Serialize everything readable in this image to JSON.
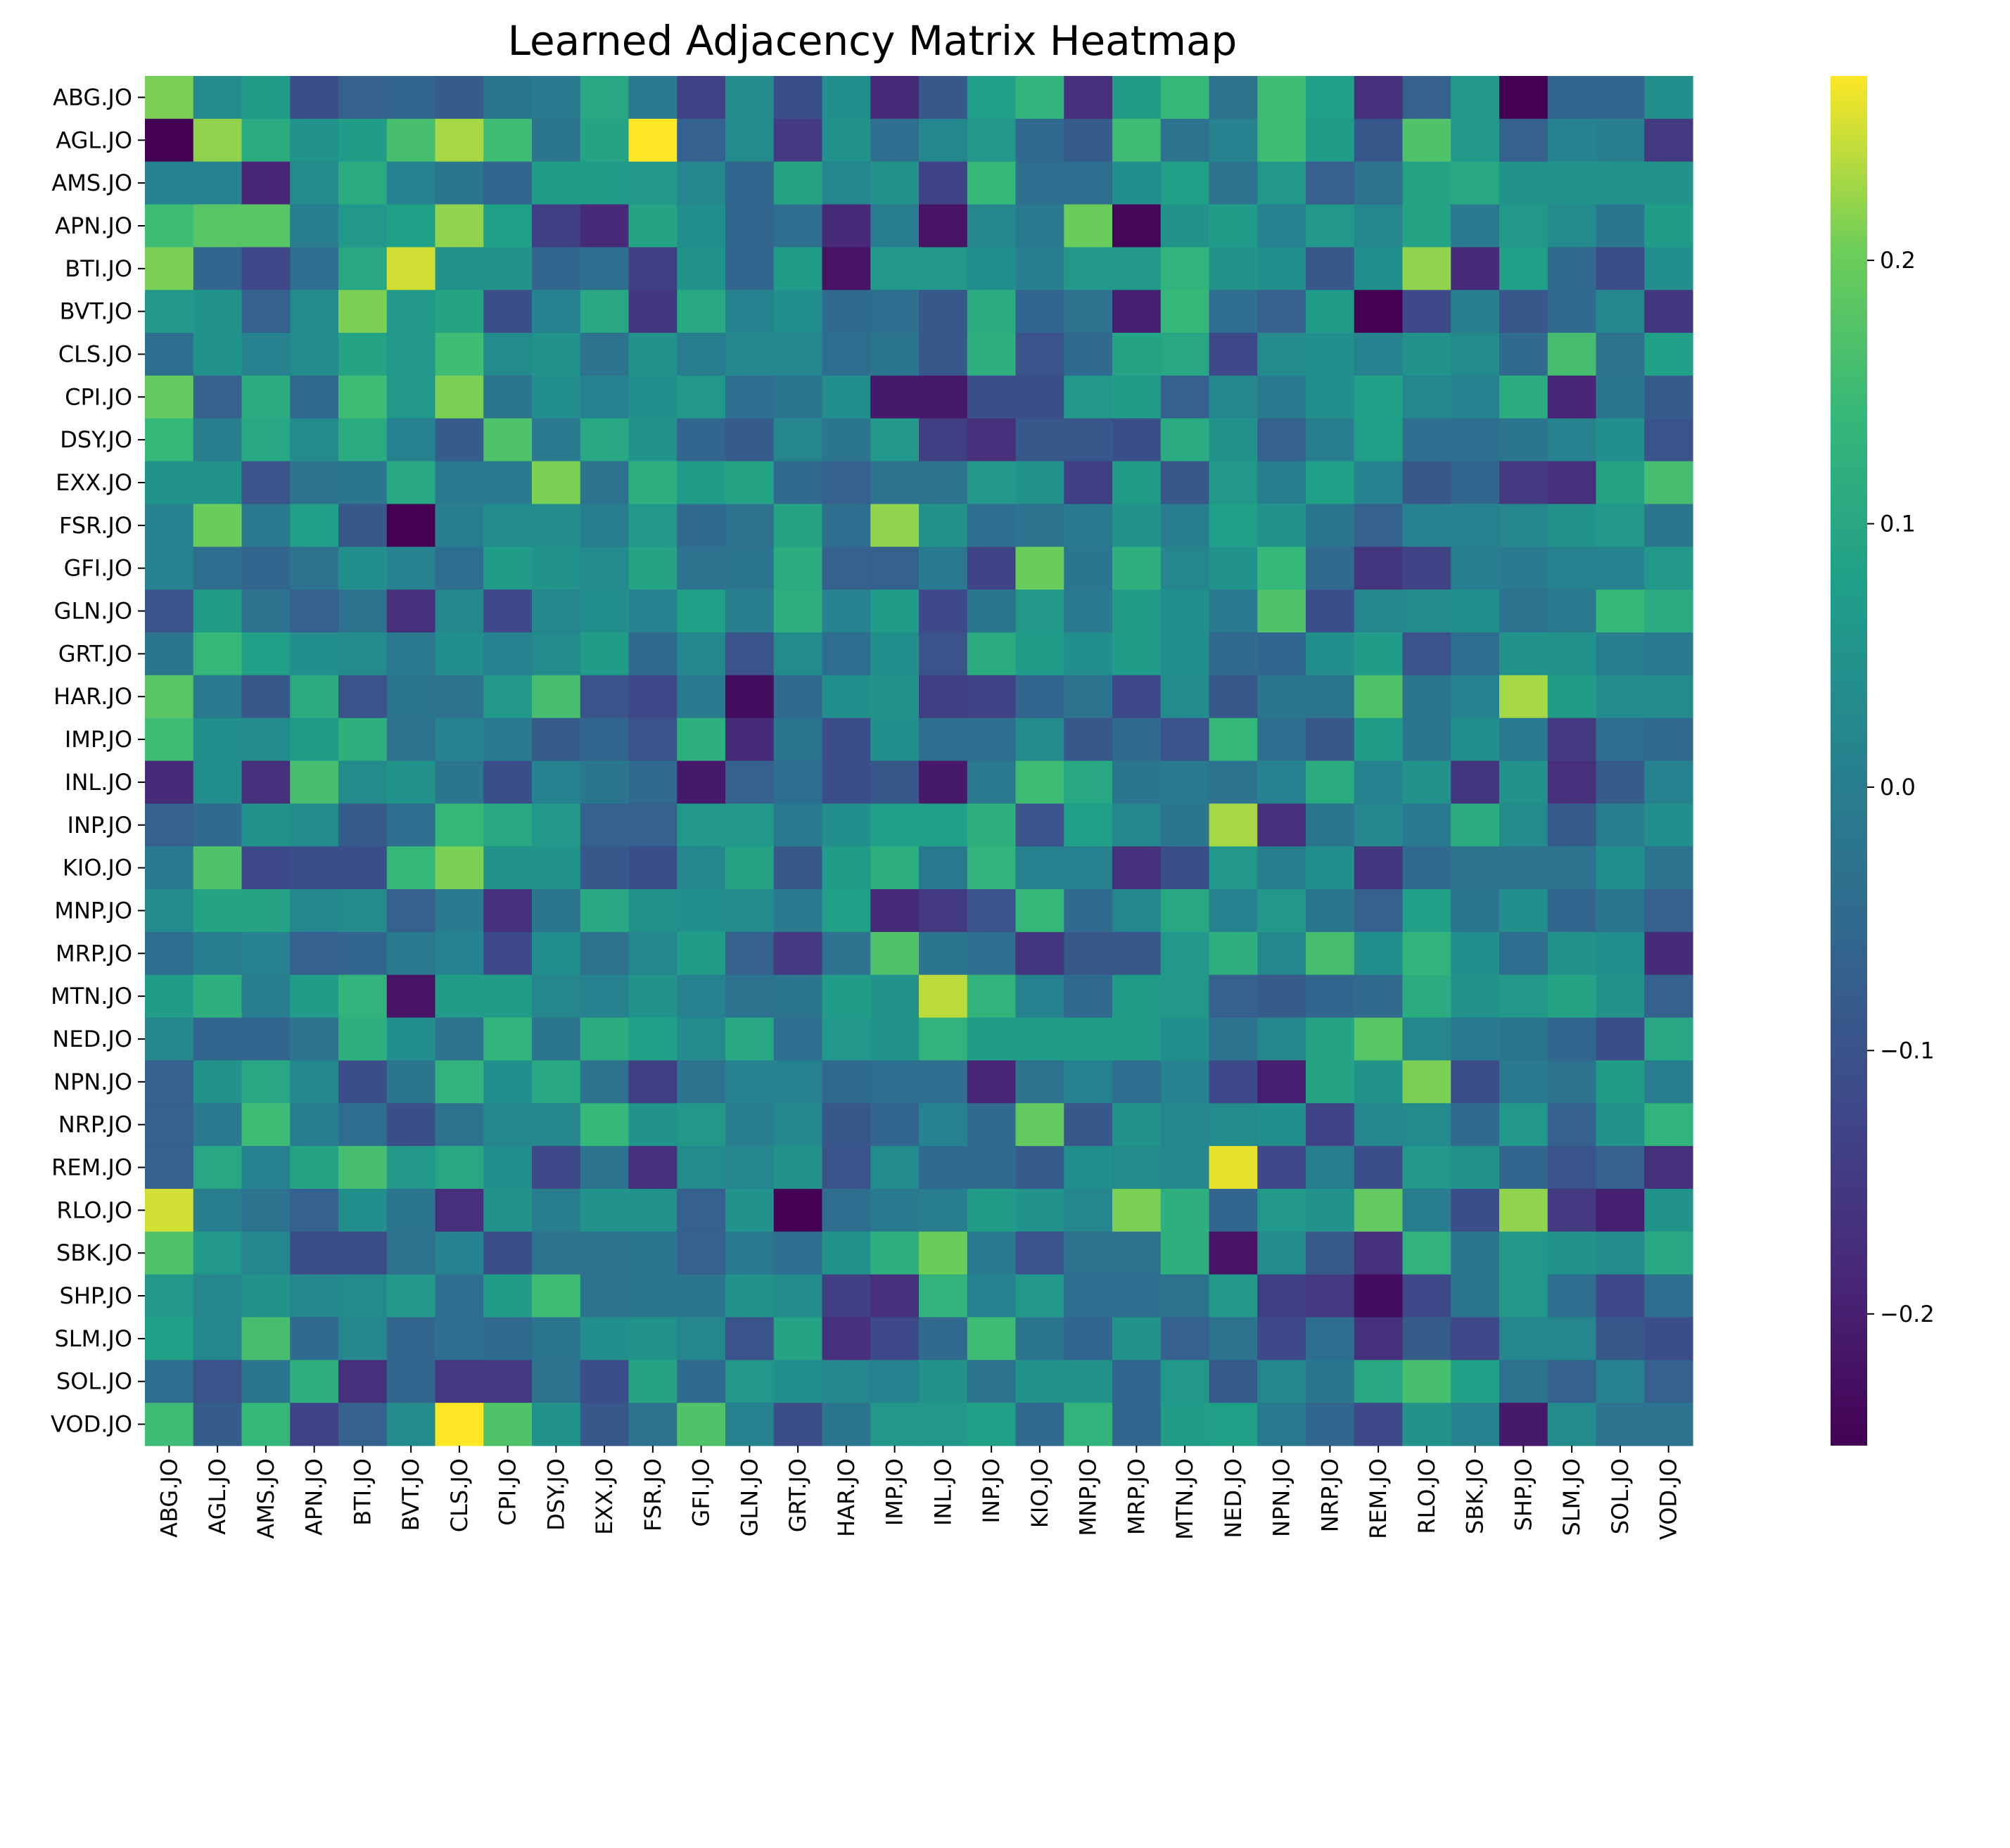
{
  "chart_data": {
    "type": "heatmap",
    "title": "Learned Adjacency Matrix Heatmap",
    "xlabel": "",
    "ylabel": "",
    "colormap": "viridis",
    "vmin": -0.25,
    "vmax": 0.27,
    "colorbar_ticks": [
      0.2,
      0.1,
      0.0,
      -0.1,
      -0.2
    ],
    "colorbar_tick_labels": [
      "0.2",
      "0.1",
      "0.0",
      "−0.1",
      "−0.2"
    ],
    "row_labels": [
      "ABG.JO",
      "AGL.JO",
      "AMS.JO",
      "APN.JO",
      "BTI.JO",
      "BVT.JO",
      "CLS.JO",
      "CPI.JO",
      "DSY.JO",
      "EXX.JO",
      "FSR.JO",
      "GFI.JO",
      "GLN.JO",
      "GRT.JO",
      "HAR.JO",
      "IMP.JO",
      "INL.JO",
      "INP.JO",
      "KIO.JO",
      "MNP.JO",
      "MRP.JO",
      "MTN.JO",
      "NED.JO",
      "NPN.JO",
      "NRP.JO",
      "REM.JO",
      "RLO.JO",
      "SBK.JO",
      "SHP.JO",
      "SLM.JO",
      "SOL.JO",
      "VOD.JO"
    ],
    "col_labels": [
      "ABG.JO",
      "AGL.JO",
      "AMS.JO",
      "APN.JO",
      "BTI.JO",
      "BVT.JO",
      "CLS.JO",
      "CPI.JO",
      "DSY.JO",
      "EXX.JO",
      "FSR.JO",
      "GFI.JO",
      "GLN.JO",
      "GRT.JO",
      "HAR.JO",
      "IMP.JO",
      "INL.JO",
      "INP.JO",
      "KIO.JO",
      "MNP.JO",
      "MRP.JO",
      "MTN.JO",
      "NED.JO",
      "NPN.JO",
      "NRP.JO",
      "REM.JO",
      "RLO.JO",
      "SBK.JO",
      "SHP.JO",
      "SLM.JO",
      "SOL.JO",
      "VOD.JO"
    ],
    "values": [
      [
        0.21,
        0.03,
        0.07,
        -0.11,
        -0.07,
        -0.06,
        -0.08,
        -0.02,
        -0.01,
        0.1,
        -0.01,
        -0.13,
        0.03,
        -0.11,
        0.04,
        -0.18,
        -0.09,
        0.08,
        0.13,
        -0.17,
        0.07,
        0.14,
        -0.03,
        0.15,
        0.08,
        -0.17,
        -0.07,
        0.06,
        -0.25,
        -0.06,
        -0.06,
        0.04
      ],
      [
        -0.25,
        0.22,
        0.11,
        0.05,
        0.07,
        0.16,
        0.23,
        0.15,
        -0.02,
        0.09,
        0.27,
        -0.07,
        0.03,
        -0.15,
        0.05,
        -0.04,
        0.02,
        0.06,
        -0.05,
        -0.08,
        0.15,
        -0.03,
        0.01,
        0.15,
        0.07,
        -0.09,
        0.17,
        0.06,
        -0.07,
        0.01,
        0.0,
        -0.15
      ],
      [
        0.01,
        0.01,
        -0.19,
        0.03,
        0.11,
        0.01,
        -0.02,
        -0.06,
        0.07,
        0.07,
        0.06,
        0.02,
        -0.06,
        0.09,
        0.02,
        0.05,
        -0.13,
        0.14,
        -0.04,
        -0.04,
        0.04,
        0.08,
        -0.03,
        0.06,
        -0.07,
        -0.03,
        0.09,
        0.1,
        0.05,
        0.05,
        0.05,
        0.05
      ],
      [
        0.15,
        0.18,
        0.18,
        0.0,
        0.06,
        0.08,
        0.22,
        0.08,
        -0.14,
        -0.18,
        0.09,
        0.04,
        -0.06,
        -0.04,
        -0.18,
        0.0,
        -0.22,
        0.02,
        -0.01,
        0.2,
        -0.24,
        0.05,
        0.07,
        0.01,
        0.06,
        0.02,
        0.09,
        -0.01,
        0.06,
        0.03,
        -0.02,
        0.07
      ],
      [
        0.21,
        -0.06,
        -0.12,
        -0.04,
        0.1,
        0.25,
        0.05,
        0.05,
        -0.06,
        -0.04,
        -0.14,
        0.05,
        -0.06,
        0.07,
        -0.22,
        0.06,
        0.06,
        0.04,
        0.0,
        0.06,
        0.06,
        0.13,
        0.05,
        0.04,
        -0.09,
        0.04,
        0.22,
        -0.18,
        0.08,
        -0.05,
        -0.11,
        0.04
      ],
      [
        0.06,
        0.05,
        -0.07,
        0.03,
        0.21,
        0.06,
        0.09,
        -0.11,
        0.01,
        0.1,
        -0.16,
        0.1,
        0.01,
        0.04,
        -0.05,
        -0.04,
        -0.09,
        0.11,
        -0.06,
        -0.03,
        -0.2,
        0.14,
        -0.04,
        -0.07,
        0.07,
        -0.25,
        -0.12,
        0.0,
        -0.09,
        -0.05,
        0.02,
        -0.16
      ],
      [
        -0.04,
        0.05,
        0.01,
        0.03,
        0.09,
        0.06,
        0.15,
        0.03,
        0.05,
        -0.03,
        0.05,
        0.0,
        0.02,
        0.02,
        -0.04,
        -0.02,
        -0.09,
        0.12,
        -0.1,
        -0.05,
        0.09,
        0.1,
        -0.12,
        0.03,
        0.04,
        0.01,
        0.05,
        0.03,
        -0.05,
        0.16,
        -0.03,
        0.08
      ],
      [
        0.19,
        -0.07,
        0.11,
        -0.05,
        0.15,
        0.06,
        0.21,
        -0.02,
        0.04,
        0.01,
        0.04,
        0.06,
        -0.04,
        -0.02,
        0.04,
        -0.21,
        -0.21,
        -0.11,
        -0.11,
        0.06,
        0.07,
        -0.07,
        0.02,
        -0.01,
        0.04,
        0.08,
        0.02,
        0.01,
        0.11,
        -0.19,
        -0.02,
        -0.08
      ],
      [
        0.14,
        0.0,
        0.1,
        0.03,
        0.11,
        0.01,
        -0.08,
        0.17,
        -0.01,
        0.1,
        0.05,
        -0.06,
        -0.08,
        0.02,
        -0.02,
        0.06,
        -0.14,
        -0.17,
        -0.09,
        -0.09,
        -0.11,
        0.11,
        0.05,
        -0.07,
        0.0,
        0.08,
        -0.04,
        -0.04,
        -0.02,
        0.01,
        0.04,
        -0.1
      ],
      [
        0.05,
        0.05,
        -0.1,
        -0.03,
        -0.02,
        0.1,
        -0.01,
        -0.01,
        0.21,
        -0.03,
        0.12,
        0.07,
        0.09,
        -0.05,
        -0.07,
        -0.03,
        -0.03,
        0.06,
        0.05,
        -0.14,
        0.07,
        -0.09,
        0.06,
        0.0,
        0.08,
        0.01,
        -0.09,
        -0.06,
        -0.15,
        -0.17,
        0.09,
        0.16
      ],
      [
        0.01,
        0.2,
        -0.01,
        0.08,
        -0.09,
        -0.25,
        0.0,
        0.03,
        0.03,
        0.0,
        0.06,
        -0.05,
        -0.03,
        0.09,
        -0.04,
        0.22,
        0.05,
        -0.04,
        -0.03,
        -0.01,
        0.05,
        0.0,
        0.08,
        0.05,
        -0.02,
        -0.07,
        0.01,
        0.01,
        0.02,
        0.05,
        0.06,
        -0.02
      ],
      [
        0.01,
        -0.04,
        -0.06,
        -0.03,
        0.04,
        0.01,
        -0.04,
        0.07,
        0.05,
        0.03,
        0.09,
        -0.03,
        -0.02,
        0.11,
        -0.07,
        -0.07,
        -0.01,
        -0.13,
        0.2,
        -0.02,
        0.12,
        0.02,
        0.05,
        0.14,
        -0.05,
        -0.16,
        -0.13,
        0.0,
        -0.01,
        0.01,
        0.01,
        0.06
      ],
      [
        -0.1,
        0.07,
        -0.03,
        -0.07,
        -0.03,
        -0.17,
        0.02,
        -0.12,
        0.02,
        0.04,
        0.01,
        0.08,
        0.0,
        0.12,
        0.01,
        0.07,
        -0.12,
        -0.02,
        0.06,
        -0.01,
        0.07,
        0.04,
        -0.01,
        0.17,
        -0.11,
        0.02,
        0.03,
        0.04,
        -0.03,
        -0.01,
        0.14,
        0.11
      ],
      [
        -0.02,
        0.14,
        0.08,
        0.04,
        0.03,
        -0.01,
        0.04,
        0.01,
        0.03,
        0.07,
        -0.05,
        0.02,
        -0.1,
        0.03,
        -0.04,
        0.04,
        -0.1,
        0.11,
        0.07,
        0.04,
        0.07,
        0.04,
        -0.05,
        -0.06,
        0.04,
        0.07,
        -0.1,
        -0.04,
        0.05,
        0.05,
        0.0,
        -0.01
      ],
      [
        0.18,
        -0.01,
        -0.09,
        0.11,
        -0.1,
        -0.02,
        -0.03,
        0.06,
        0.16,
        -0.1,
        -0.12,
        -0.01,
        -0.23,
        -0.05,
        0.04,
        0.05,
        -0.14,
        -0.13,
        -0.06,
        -0.03,
        -0.12,
        0.03,
        -0.09,
        -0.02,
        -0.02,
        0.17,
        -0.02,
        0.01,
        0.23,
        0.07,
        0.03,
        0.03
      ],
      [
        0.15,
        0.04,
        0.03,
        0.07,
        0.12,
        -0.03,
        0.01,
        -0.01,
        -0.08,
        -0.06,
        -0.1,
        0.12,
        -0.18,
        -0.02,
        -0.11,
        0.04,
        -0.04,
        -0.04,
        0.03,
        -0.09,
        -0.05,
        -0.1,
        0.14,
        -0.04,
        -0.09,
        0.07,
        -0.02,
        0.04,
        -0.01,
        -0.15,
        -0.04,
        -0.05
      ],
      [
        -0.18,
        0.04,
        -0.17,
        0.16,
        0.03,
        0.05,
        -0.02,
        -0.11,
        0.01,
        -0.02,
        -0.05,
        -0.21,
        -0.07,
        -0.04,
        -0.11,
        -0.09,
        -0.21,
        -0.01,
        0.15,
        0.1,
        -0.02,
        -0.01,
        -0.03,
        0.01,
        0.11,
        0.01,
        0.05,
        -0.16,
        0.05,
        -0.17,
        -0.08,
        0.01
      ],
      [
        -0.07,
        -0.05,
        0.05,
        0.03,
        -0.08,
        -0.04,
        0.14,
        0.1,
        0.06,
        -0.07,
        -0.07,
        0.06,
        0.06,
        -0.01,
        0.04,
        0.08,
        0.08,
        0.12,
        -0.1,
        0.08,
        0.02,
        -0.02,
        0.23,
        -0.17,
        -0.02,
        0.02,
        -0.01,
        0.11,
        0.03,
        -0.08,
        0.0,
        0.04
      ],
      [
        -0.01,
        0.17,
        -0.12,
        -0.11,
        -0.11,
        0.14,
        0.21,
        0.05,
        0.05,
        -0.09,
        -0.11,
        0.02,
        0.09,
        -0.09,
        0.07,
        0.12,
        -0.01,
        0.13,
        0.01,
        0.01,
        -0.17,
        -0.11,
        0.06,
        0.0,
        0.04,
        -0.16,
        -0.05,
        -0.03,
        -0.03,
        -0.03,
        0.04,
        -0.03
      ],
      [
        0.03,
        0.09,
        0.09,
        0.02,
        0.03,
        -0.07,
        -0.01,
        -0.17,
        -0.02,
        0.1,
        0.05,
        0.04,
        0.03,
        -0.01,
        0.08,
        -0.18,
        -0.15,
        -0.1,
        0.14,
        -0.05,
        0.02,
        0.1,
        0.01,
        0.06,
        -0.02,
        -0.07,
        0.08,
        -0.02,
        0.04,
        -0.06,
        -0.02,
        -0.07
      ],
      [
        -0.04,
        0.0,
        0.01,
        -0.07,
        -0.06,
        -0.01,
        0.01,
        -0.12,
        0.04,
        -0.03,
        0.02,
        0.07,
        -0.07,
        -0.15,
        -0.03,
        0.17,
        -0.02,
        -0.04,
        -0.16,
        -0.09,
        -0.09,
        0.06,
        0.12,
        0.02,
        0.16,
        0.04,
        0.13,
        0.04,
        -0.04,
        0.05,
        0.04,
        -0.18
      ],
      [
        0.07,
        0.12,
        0.0,
        0.07,
        0.13,
        -0.22,
        0.07,
        0.07,
        0.02,
        0.01,
        0.05,
        0.01,
        -0.03,
        -0.02,
        0.07,
        0.05,
        0.24,
        0.13,
        0.01,
        -0.05,
        0.07,
        0.06,
        -0.07,
        -0.08,
        -0.06,
        -0.05,
        0.11,
        0.05,
        0.06,
        0.09,
        0.05,
        -0.07
      ],
      [
        0.02,
        -0.06,
        -0.06,
        -0.03,
        0.12,
        0.04,
        -0.03,
        0.13,
        -0.02,
        0.11,
        0.08,
        0.03,
        0.1,
        -0.04,
        0.06,
        0.05,
        0.13,
        0.07,
        0.07,
        0.07,
        0.07,
        0.04,
        -0.03,
        0.02,
        0.09,
        0.18,
        0.02,
        -0.01,
        -0.02,
        -0.06,
        -0.11,
        0.1
      ],
      [
        -0.07,
        0.05,
        0.1,
        0.02,
        -0.11,
        -0.02,
        0.13,
        0.04,
        0.1,
        -0.03,
        -0.14,
        -0.03,
        0.01,
        0.01,
        -0.05,
        -0.04,
        -0.04,
        -0.19,
        -0.03,
        0.01,
        -0.04,
        0.01,
        -0.12,
        -0.2,
        0.09,
        0.05,
        0.21,
        -0.11,
        -0.01,
        -0.03,
        0.07,
        0.0
      ],
      [
        -0.07,
        -0.01,
        0.15,
        0.0,
        -0.04,
        -0.11,
        -0.03,
        0.02,
        0.02,
        0.14,
        0.05,
        0.06,
        0.0,
        0.02,
        -0.09,
        -0.06,
        0.01,
        -0.05,
        0.19,
        -0.09,
        0.05,
        0.02,
        0.03,
        0.04,
        -0.13,
        0.02,
        0.03,
        -0.05,
        0.06,
        -0.07,
        0.05,
        0.13
      ],
      [
        -0.07,
        0.1,
        0.01,
        0.09,
        0.16,
        0.06,
        0.1,
        0.04,
        -0.12,
        -0.03,
        -0.17,
        0.03,
        0.02,
        0.05,
        -0.1,
        0.03,
        -0.05,
        -0.05,
        -0.08,
        0.04,
        0.03,
        0.02,
        0.26,
        -0.12,
        0.0,
        -0.11,
        0.06,
        0.05,
        -0.06,
        -0.1,
        -0.07,
        -0.17
      ],
      [
        0.25,
        0.0,
        -0.03,
        -0.07,
        0.04,
        -0.02,
        -0.17,
        0.05,
        0.0,
        0.05,
        0.05,
        -0.07,
        0.05,
        -0.25,
        -0.04,
        -0.01,
        0.0,
        0.07,
        0.05,
        0.02,
        0.21,
        0.12,
        -0.06,
        0.06,
        0.05,
        0.19,
        0.0,
        -0.11,
        0.22,
        -0.15,
        -0.2,
        0.05
      ],
      [
        0.17,
        0.06,
        0.02,
        -0.11,
        -0.11,
        -0.03,
        0.01,
        -0.11,
        -0.03,
        -0.03,
        -0.02,
        -0.07,
        -0.01,
        -0.04,
        0.05,
        0.12,
        0.2,
        -0.01,
        -0.1,
        -0.03,
        -0.03,
        0.12,
        -0.22,
        0.03,
        -0.08,
        -0.17,
        0.13,
        -0.02,
        0.06,
        0.05,
        0.03,
        0.1
      ],
      [
        0.06,
        0.02,
        0.05,
        0.02,
        0.03,
        0.06,
        -0.04,
        0.07,
        0.15,
        -0.03,
        -0.02,
        -0.02,
        0.05,
        0.03,
        -0.14,
        -0.17,
        0.13,
        0.01,
        0.06,
        -0.04,
        -0.04,
        -0.03,
        0.06,
        -0.14,
        -0.15,
        -0.23,
        -0.12,
        -0.02,
        0.06,
        -0.04,
        -0.12,
        -0.04
      ],
      [
        0.08,
        0.02,
        0.16,
        -0.05,
        0.02,
        -0.06,
        -0.04,
        -0.05,
        -0.02,
        0.04,
        0.05,
        0.02,
        -0.1,
        0.09,
        -0.17,
        -0.12,
        -0.05,
        0.15,
        -0.02,
        -0.06,
        0.05,
        -0.07,
        -0.03,
        -0.12,
        -0.04,
        -0.17,
        -0.08,
        -0.12,
        0.02,
        0.02,
        -0.09,
        -0.11
      ],
      [
        -0.04,
        -0.1,
        -0.02,
        0.12,
        -0.17,
        -0.06,
        -0.15,
        -0.15,
        -0.03,
        -0.11,
        0.09,
        -0.05,
        0.06,
        0.04,
        0.02,
        0.01,
        0.05,
        -0.03,
        0.05,
        0.05,
        -0.06,
        0.06,
        -0.08,
        0.02,
        -0.02,
        0.1,
        0.16,
        0.08,
        -0.03,
        -0.07,
        0.01,
        -0.07
      ],
      [
        0.15,
        -0.08,
        0.14,
        -0.13,
        -0.07,
        0.03,
        0.27,
        0.17,
        0.05,
        -0.09,
        -0.03,
        0.17,
        0.01,
        -0.11,
        -0.02,
        0.06,
        0.06,
        0.08,
        -0.05,
        0.13,
        -0.06,
        0.07,
        0.08,
        -0.01,
        -0.06,
        -0.12,
        0.05,
        0.01,
        -0.21,
        0.03,
        -0.03,
        -0.03
      ]
    ]
  }
}
